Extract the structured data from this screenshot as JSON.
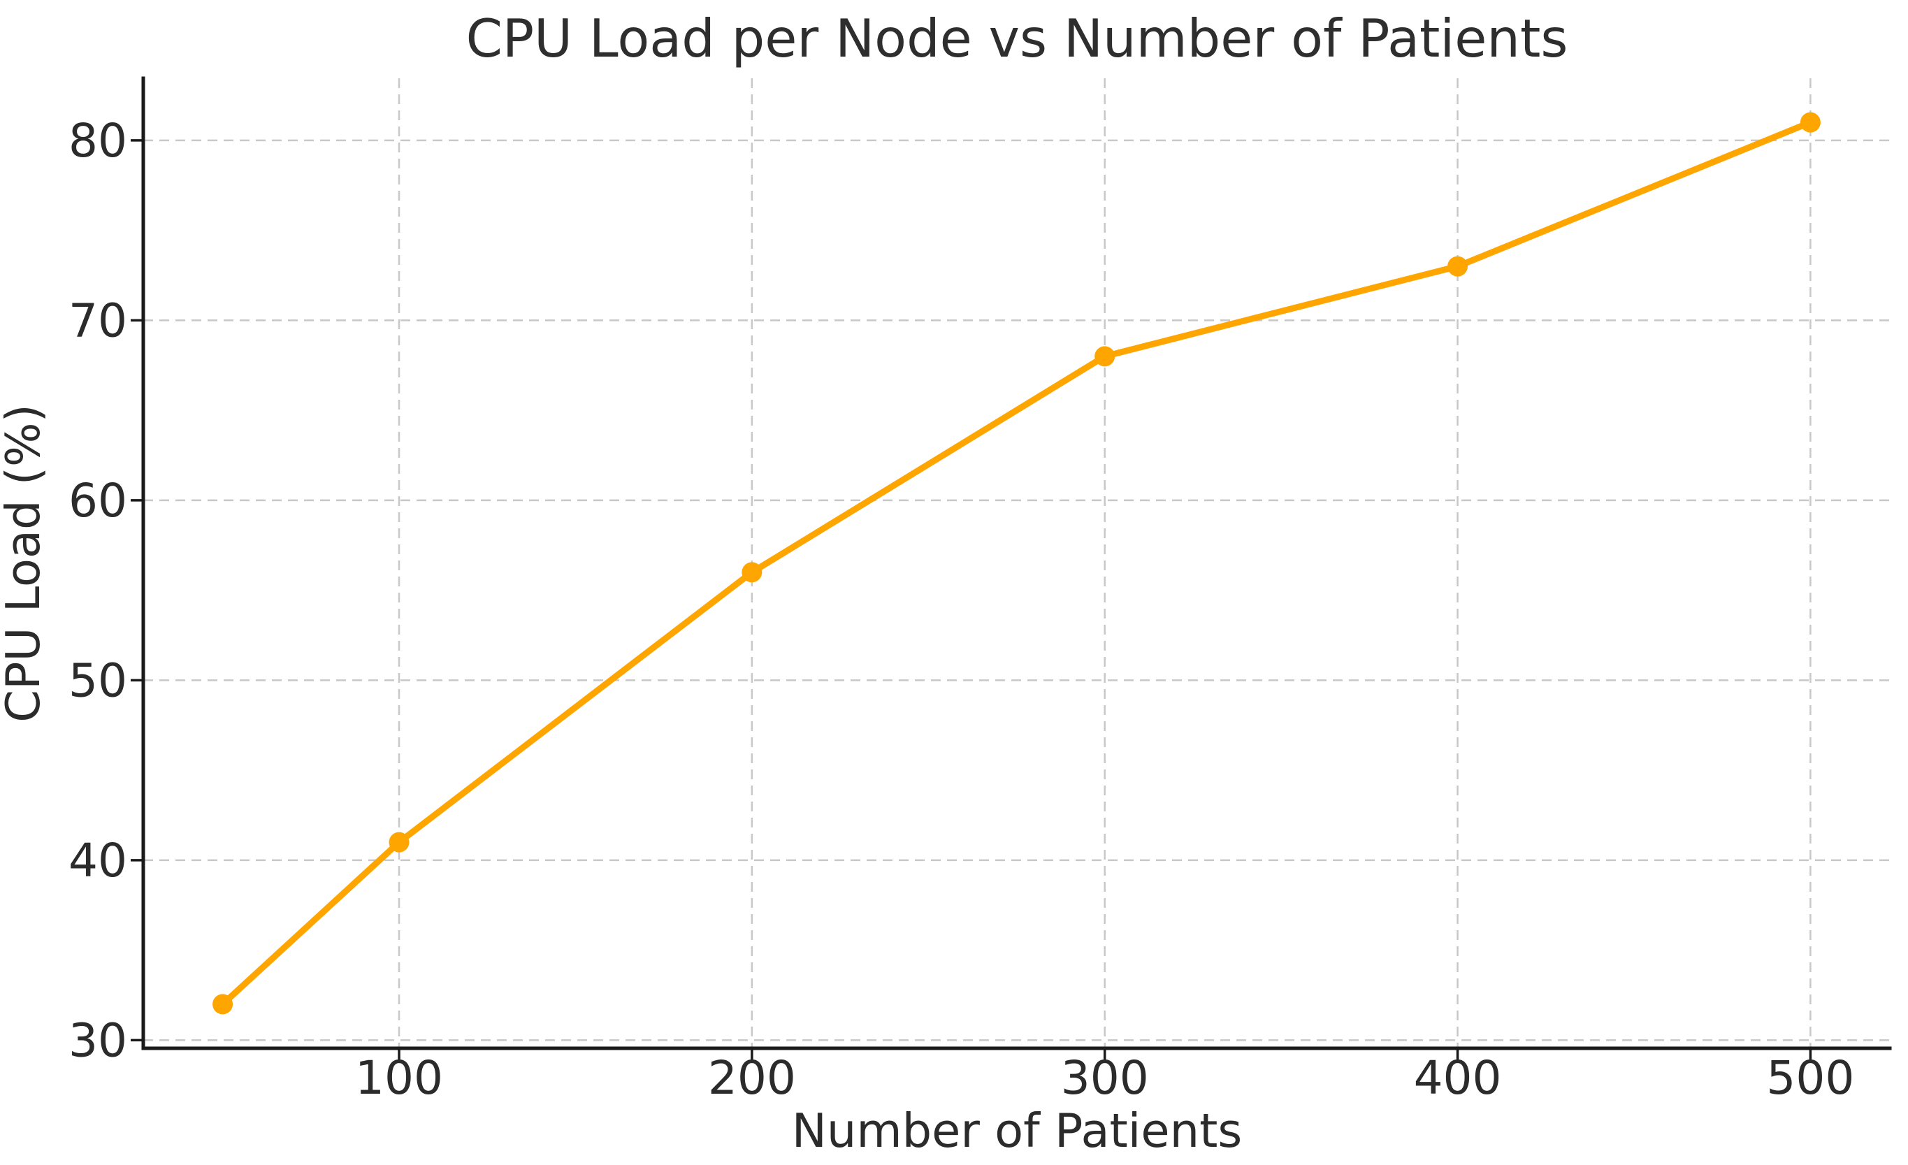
{
  "chart_data": {
    "type": "line",
    "title": "CPU Load per Node vs Number of Patients",
    "xlabel": "Number of Patients",
    "ylabel": "CPU Load (%)",
    "x": [
      50,
      100,
      200,
      300,
      400,
      500
    ],
    "y": [
      32,
      41,
      56,
      68,
      73,
      81
    ],
    "series": [
      {
        "name": "CPU Load",
        "x": [
          50,
          100,
          200,
          300,
          400,
          500
        ],
        "values": [
          32,
          41,
          56,
          68,
          73,
          81
        ]
      }
    ],
    "xticks": [
      100,
      200,
      300,
      400,
      500
    ],
    "yticks": [
      30,
      40,
      50,
      60,
      70,
      80
    ],
    "xlim": [
      27.5,
      522.5
    ],
    "ylim": [
      29.55,
      83.45
    ],
    "grid": "dashed both axes",
    "legend": "none",
    "line_color": "#FFA500",
    "marker": "circle",
    "marker_color": "#FFA500",
    "grid_color": "#c8c8c8",
    "axis_color": "#1a1a1a",
    "text_color": "#2b2b2b",
    "background_color": "#ffffff"
  }
}
